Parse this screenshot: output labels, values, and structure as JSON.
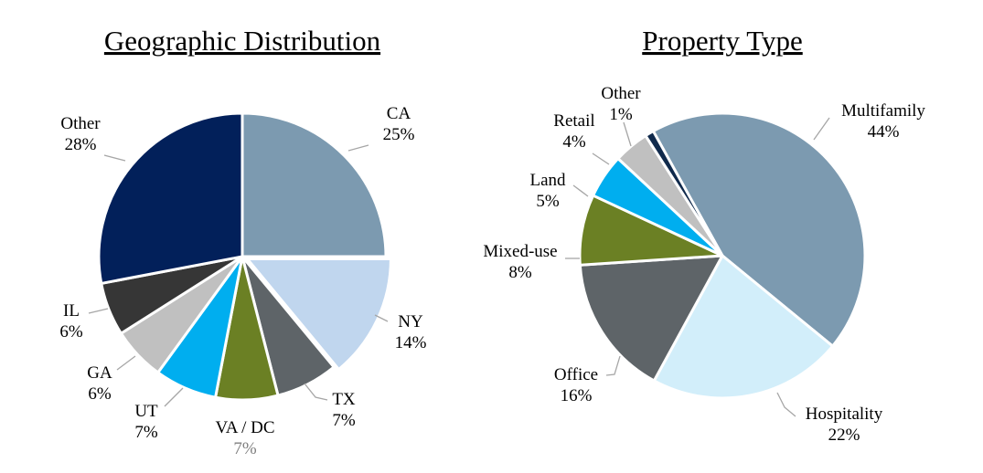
{
  "chart_data": [
    {
      "type": "pie",
      "title": "Geographic Distribution",
      "slices": [
        {
          "label": "CA",
          "pct_label": "25%",
          "value": 25,
          "color": "#7C9AB0"
        },
        {
          "label": "NY",
          "pct_label": "14%",
          "value": 14,
          "color": "#C0D6EE"
        },
        {
          "label": "TX",
          "pct_label": "7%",
          "value": 7,
          "color": "#5E6468"
        },
        {
          "label": "VA / DC",
          "pct_label": "7%",
          "value": 7,
          "color": "#6B8024"
        },
        {
          "label": "UT",
          "pct_label": "7%",
          "value": 7,
          "color": "#00AEEF"
        },
        {
          "label": "GA",
          "pct_label": "6%",
          "value": 6,
          "color": "#C0C0C0"
        },
        {
          "label": "IL",
          "pct_label": "6%",
          "value": 6,
          "color": "#363636"
        },
        {
          "label": "Other",
          "pct_label": "28%",
          "value": 28,
          "color": "#02205A"
        }
      ],
      "leader_line_color": "#A6A6A6",
      "slice_border_color": "#FFFFFF"
    },
    {
      "type": "pie",
      "title": "Property Type",
      "slices": [
        {
          "label": "Multifamily",
          "pct_label": "44%",
          "value": 44,
          "color": "#7C9AB0"
        },
        {
          "label": "Hospitality",
          "pct_label": "22%",
          "value": 22,
          "color": "#D2EEFA"
        },
        {
          "label": "Office",
          "pct_label": "16%",
          "value": 16,
          "color": "#5E6468"
        },
        {
          "label": "Mixed-use",
          "pct_label": "8%",
          "value": 8,
          "color": "#6B8024"
        },
        {
          "label": "Land",
          "pct_label": "5%",
          "value": 5,
          "color": "#00AEEF"
        },
        {
          "label": "Retail",
          "pct_label": "4%",
          "value": 4,
          "color": "#C0C0C0"
        },
        {
          "label": "Other",
          "pct_label": "1%",
          "value": 1,
          "color": "#102A4C"
        }
      ],
      "leader_line_color": "#A6A6A6",
      "slice_border_color": "#FFFFFF"
    }
  ]
}
